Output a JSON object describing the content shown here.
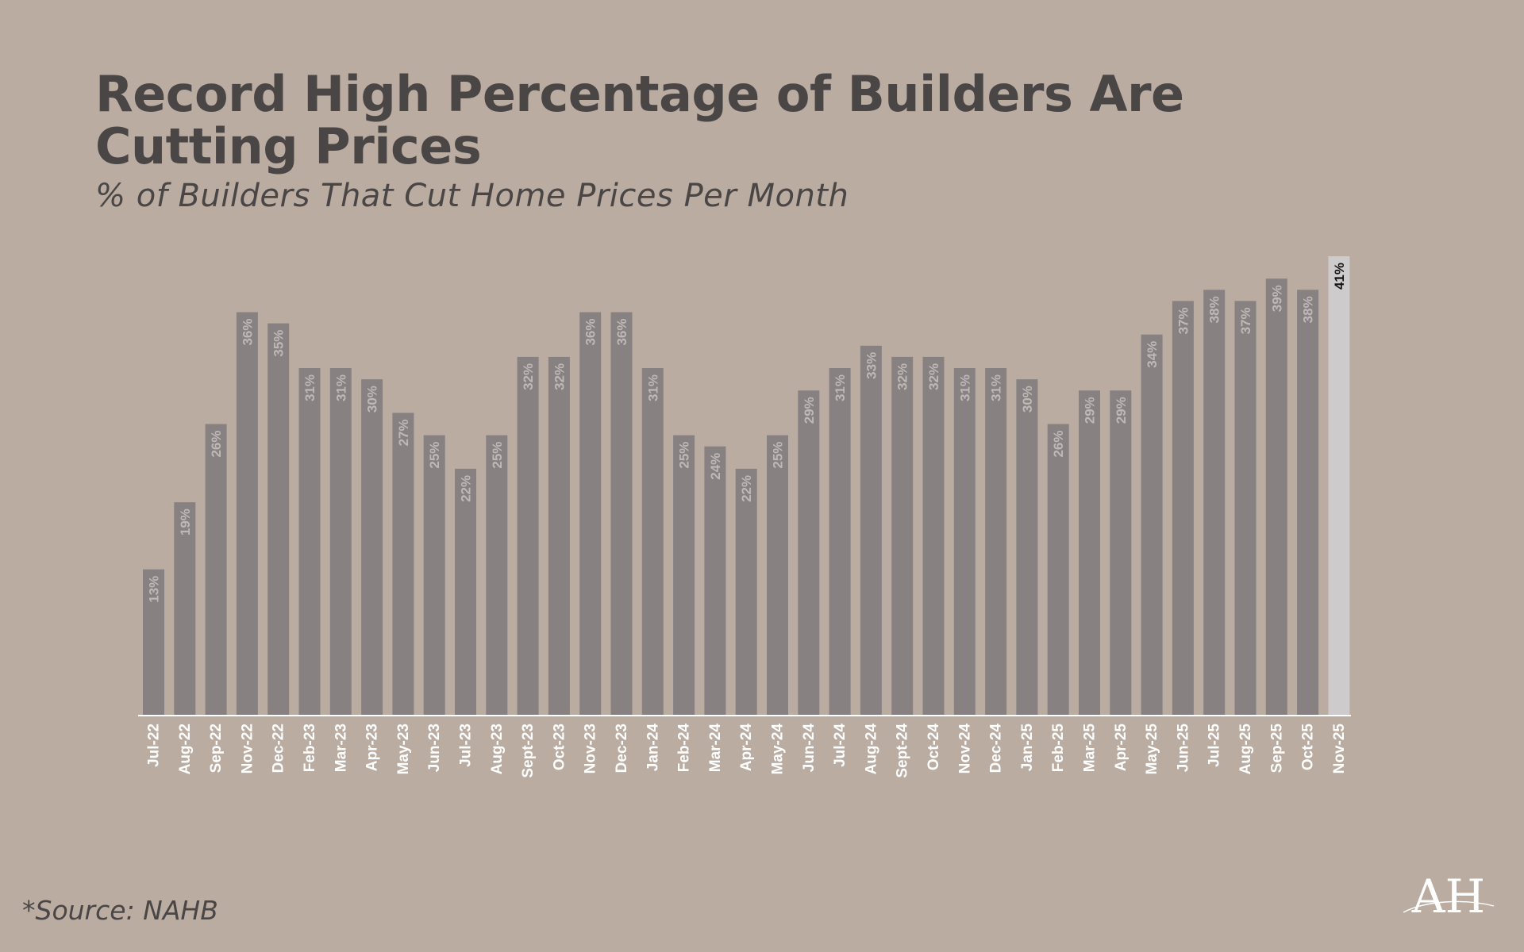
{
  "title": "Record High Percentage of Builders Are Cutting Prices",
  "subtitle": "% of Builders That Cut Home Prices Per Month",
  "source": "*Source: NAHB",
  "logo_text": "AH",
  "colors": {
    "background": "#BAACA1",
    "bar": "#878281",
    "highlight_bar": "#CDCBCB",
    "bar_label": "#BEB9B7",
    "highlight_label": "#111111",
    "axis_label": "#FFFFFF",
    "heading": "#4A4646"
  },
  "chart_data": {
    "type": "bar",
    "title": "Record High Percentage of Builders Are Cutting Prices",
    "subtitle": "% of Builders That Cut Home Prices Per Month",
    "xlabel": "",
    "ylabel": "",
    "ylim": [
      0,
      41
    ],
    "grid": false,
    "legend": "none",
    "highlight": "Nov-25",
    "categories": [
      "Jul-22",
      "Aug-22",
      "Sep-22",
      "Nov-22",
      "Dec-22",
      "Feb-23",
      "Mar-23",
      "Apr-23",
      "May-23",
      "Jun-23",
      "Jul-23",
      "Aug-23",
      "Sept-23",
      "Oct-23",
      "Nov-23",
      "Dec-23",
      "Jan-24",
      "Feb-24",
      "Mar-24",
      "Apr-24",
      "May-24",
      "Jun-24",
      "Jul-24",
      "Aug-24",
      "Sept-24",
      "Oct-24",
      "Nov-24",
      "Dec-24",
      "Jan-25",
      "Feb-25",
      "Mar-25",
      "Apr-25",
      "May-25",
      "Jun-25",
      "Jul-25",
      "Aug-25",
      "Sep-25",
      "Oct-25",
      "Nov-25"
    ],
    "values": [
      13,
      19,
      26,
      36,
      35,
      31,
      31,
      30,
      27,
      25,
      22,
      25,
      32,
      32,
      36,
      36,
      31,
      25,
      24,
      22,
      25,
      29,
      31,
      33,
      32,
      32,
      31,
      31,
      30,
      26,
      29,
      29,
      34,
      37,
      38,
      37,
      39,
      38,
      41
    ],
    "labels": [
      "13%",
      "19%",
      "26%",
      "36%",
      "35%",
      "31%",
      "31%",
      "30%",
      "27%",
      "25%",
      "22%",
      "25%",
      "32%",
      "32%",
      "36%",
      "36%",
      "31%",
      "25%",
      "24%",
      "22%",
      "25%",
      "29%",
      "31%",
      "33%",
      "32%",
      "32%",
      "31%",
      "31%",
      "30%",
      "26%",
      "29%",
      "29%",
      "34%",
      "37%",
      "38%",
      "37%",
      "39%",
      "38%",
      "41%"
    ]
  }
}
